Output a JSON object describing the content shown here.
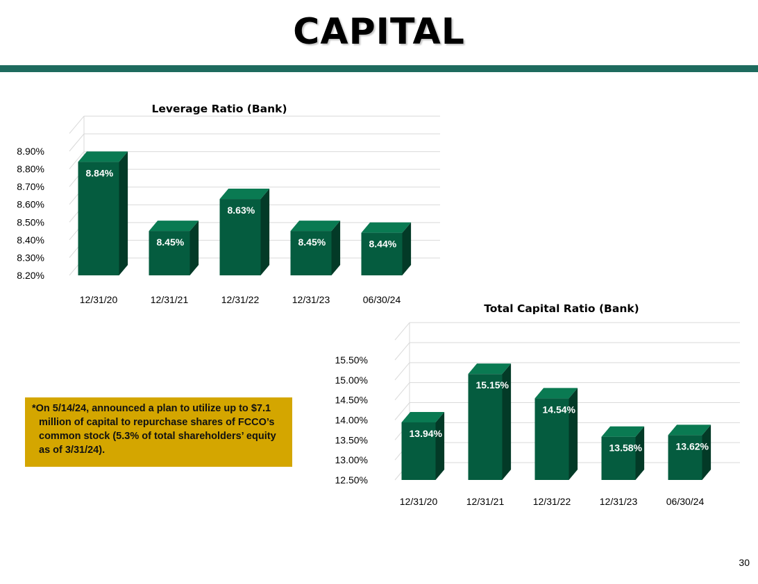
{
  "slide": {
    "title": "CAPITAL",
    "note": "*On 5/14/24, announced a plan to utilize up to $7.1 million of capital to repurchase shares of FCCO’s common stock (5.3% of total shareholders’ equity as of 3/31/24).",
    "page_number": "30"
  },
  "colors": {
    "rule": "#1e6b5e",
    "bar_front": "#055c3f",
    "bar_side": "#033a27",
    "bar_top": "#0a7a52",
    "note_bg": "#d4a600"
  },
  "chart_data": [
    {
      "type": "bar",
      "title": "Leverage Ratio (Bank)",
      "categories": [
        "12/31/20",
        "12/31/21",
        "12/31/22",
        "12/31/23",
        "06/30/24"
      ],
      "values": [
        8.84,
        8.45,
        8.63,
        8.45,
        8.44
      ],
      "value_labels": [
        "8.84%",
        "8.45%",
        "8.63%",
        "8.45%",
        "8.44%"
      ],
      "yticks": [
        8.2,
        8.3,
        8.4,
        8.5,
        8.6,
        8.7,
        8.8,
        8.9
      ],
      "ytick_labels": [
        "8.20%",
        "8.30%",
        "8.40%",
        "8.50%",
        "8.60%",
        "8.70%",
        "8.80%",
        "8.90%"
      ],
      "ylim": [
        8.2,
        8.9
      ],
      "grid": true,
      "style": "3d"
    },
    {
      "type": "bar",
      "title": "Total Capital Ratio (Bank)",
      "categories": [
        "12/31/20",
        "12/31/21",
        "12/31/22",
        "12/31/23",
        "06/30/24"
      ],
      "values": [
        13.94,
        15.15,
        14.54,
        13.58,
        13.62
      ],
      "value_labels": [
        "13.94%",
        "15.15%",
        "14.54%",
        "13.58%",
        "13.62%"
      ],
      "yticks": [
        12.5,
        13.0,
        13.5,
        14.0,
        14.5,
        15.0,
        15.5
      ],
      "ytick_labels": [
        "12.50%",
        "13.00%",
        "13.50%",
        "14.00%",
        "14.50%",
        "15.00%",
        "15.50%"
      ],
      "ylim": [
        12.5,
        15.5
      ],
      "grid": true,
      "style": "3d"
    }
  ]
}
